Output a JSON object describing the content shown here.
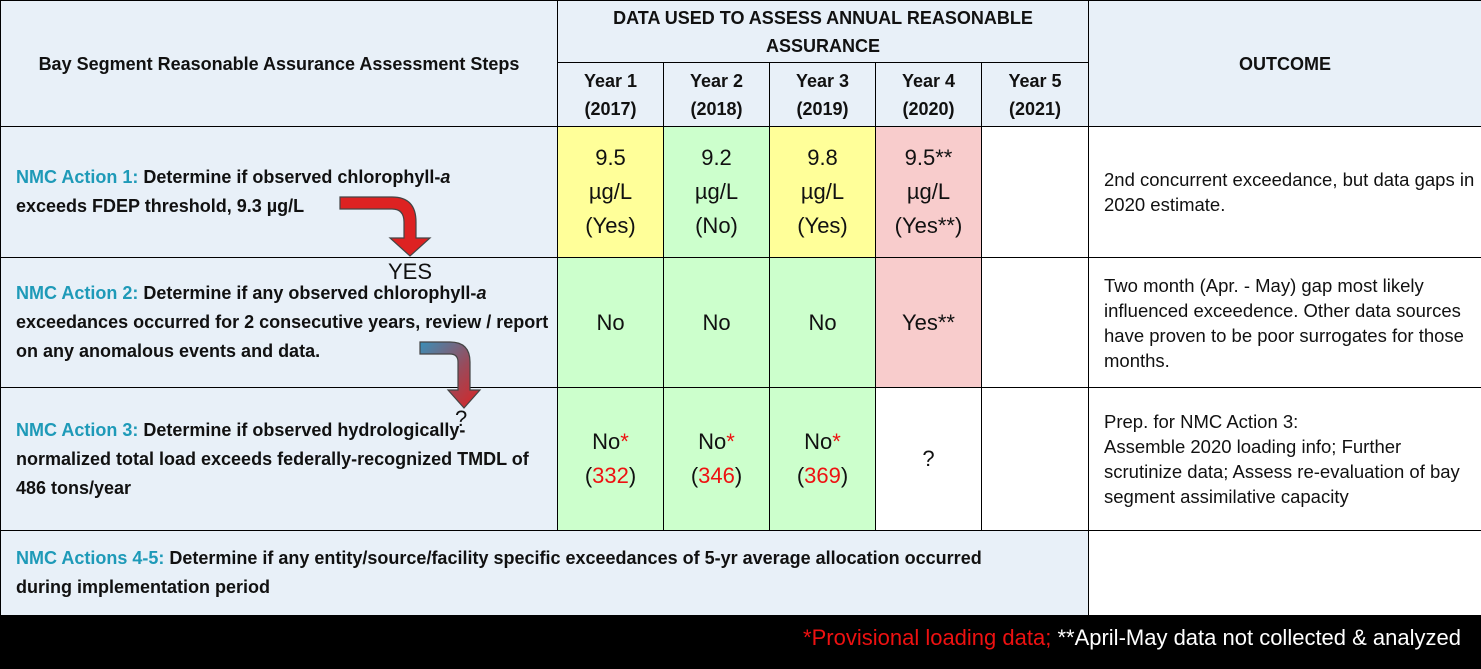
{
  "header": {
    "steps_title": "Bay Segment Reasonable Assurance Assessment Steps",
    "data_title": "DATA USED TO ASSESS ANNUAL REASONABLE ASSURANCE",
    "outcome_title": "OUTCOME",
    "years": [
      {
        "label": "Year 1",
        "year": "(2017)"
      },
      {
        "label": "Year 2",
        "year": "(2018)"
      },
      {
        "label": "Year 3",
        "year": "(2019)"
      },
      {
        "label": "Year 4",
        "year": "(2020)"
      },
      {
        "label": "Year 5",
        "year": "(2021)"
      }
    ]
  },
  "rows": [
    {
      "action": "NMC Action 1:",
      "text_line1": "Determine if observed chlorophyll-",
      "text_italic": "a",
      "text_line2": "exceeds FDEP threshold, 9.3 µg/L",
      "values": [
        {
          "v1": "9.5",
          "v2": "µg/L",
          "v3": "(Yes)"
        },
        {
          "v1": "9.2",
          "v2": "µg/L",
          "v3": "(No)"
        },
        {
          "v1": "9.8",
          "v2": "µg/L",
          "v3": "(Yes)"
        },
        {
          "v1": "9.5**",
          "v2": "µg/L",
          "v3": "(Yes**)"
        }
      ],
      "outcome": "2nd concurrent exceedance, but data gaps in 2020 estimate."
    },
    {
      "action": "NMC Action 2:",
      "text_line1": "Determine if any observed chlorophyll-",
      "text_italic": "a",
      "text_line2": "exceedances occurred for 2 consecutive years, review / report on any anomalous events and data.",
      "values": [
        "No",
        "No",
        "No",
        "Yes**"
      ],
      "outcome": "Two month (Apr. - May) gap most likely influenced exceedence. Other data sources have proven to be poor surrogates for those months."
    },
    {
      "action": "NMC Action 3:",
      "text_line1": "Determine if observed hydrologically-normalized total load exceeds federally-recognized TMDL of 486 tons/year",
      "values": [
        {
          "v1": "No",
          "star": "*",
          "load": "332"
        },
        {
          "v1": "No",
          "star": "*",
          "load": "346"
        },
        {
          "v1": "No",
          "star": "*",
          "load": "369"
        },
        {
          "q": "?"
        }
      ],
      "outcome_line1": "Prep. for NMC Action 3:",
      "outcome_line2": "Assemble 2020 loading info; Further scrutinize data; Assess re-evaluation of bay segment assimilative capacity"
    },
    {
      "action": "NMC Actions 4-5:",
      "text_line1": "Determine if any entity/source/facility specific exceedances of 5-yr average allocation occurred during implementation period"
    }
  ],
  "arrows": {
    "yes_label": "YES",
    "question_label": "?"
  },
  "footer": {
    "provisional": "*Provisional loading data;",
    "april_may": " **April-May data not collected & analyzed"
  },
  "colors": {
    "action_blue": "#1e9ab8",
    "yellow": "#ffff99",
    "green": "#ccffcc",
    "pink": "#f8cccc",
    "header_blue": "#e8f0f8",
    "red_arrow": "#dd2222",
    "blue_arrow": "#3a8fb8"
  }
}
